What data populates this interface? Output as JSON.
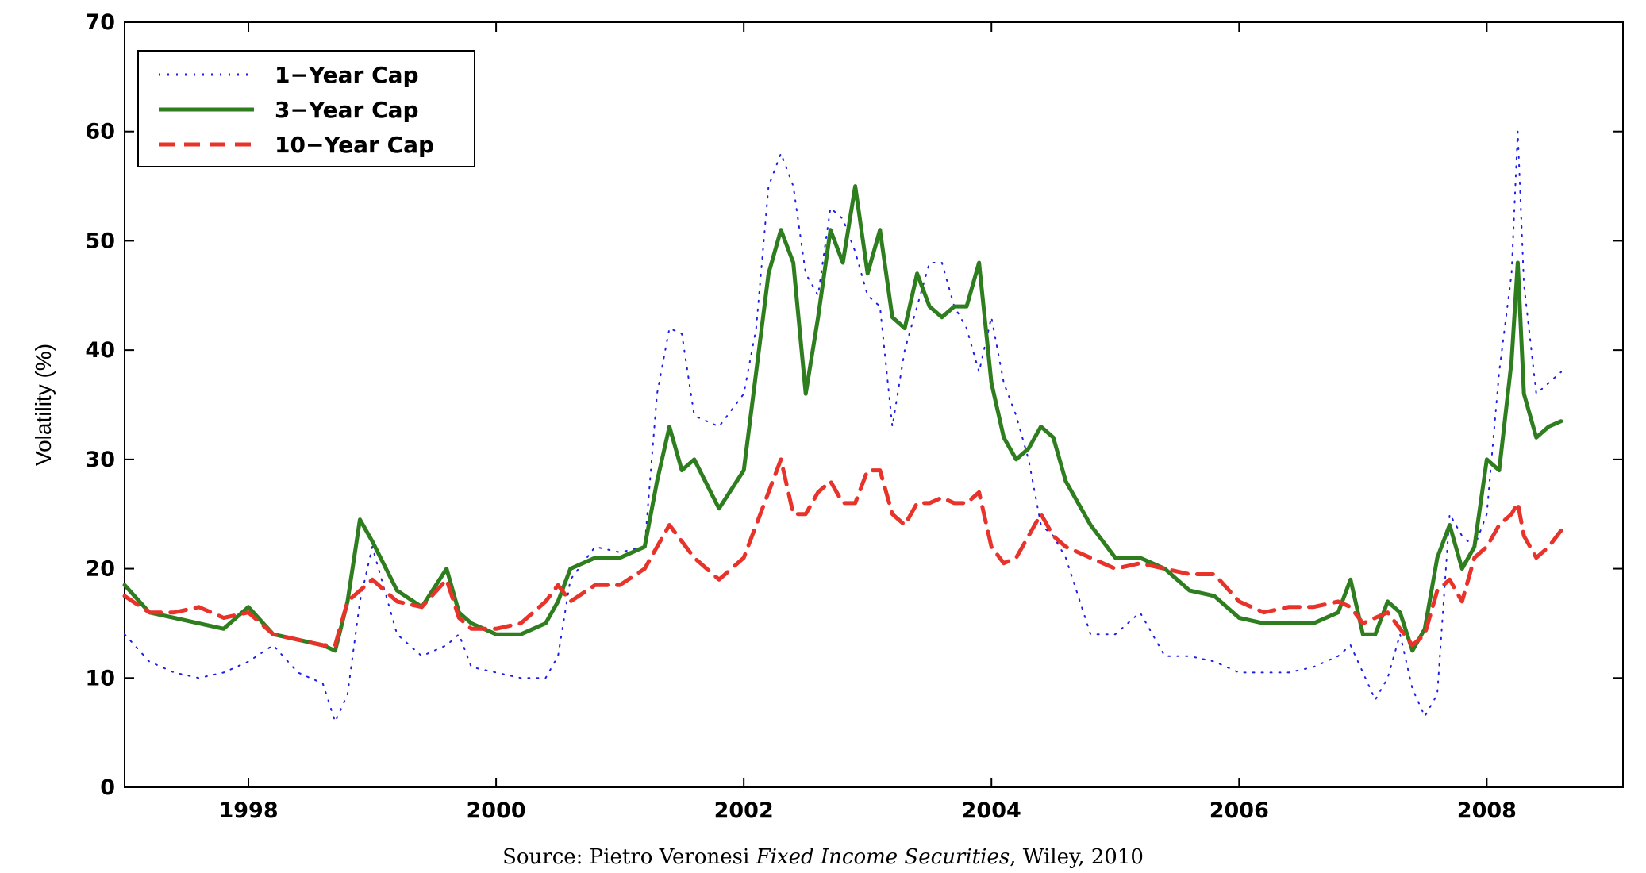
{
  "source": {
    "prefix": "Source: Pietro Veronesi ",
    "book": "Fixed Income Securities",
    "suffix": ", Wiley, 2010"
  },
  "chart_data": {
    "type": "line",
    "title": "",
    "xlabel": "",
    "ylabel": "Volatility (%)",
    "xlim": [
      1997.0,
      2009.1
    ],
    "ylim": [
      0,
      70
    ],
    "xticks": [
      1998,
      2000,
      2002,
      2004,
      2006,
      2008
    ],
    "yticks": [
      0,
      10,
      20,
      30,
      40,
      50,
      60,
      70
    ],
    "grid": false,
    "legend_position": "top-left",
    "x": [
      1997.0,
      1997.2,
      1997.4,
      1997.6,
      1997.8,
      1998.0,
      1998.2,
      1998.4,
      1998.6,
      1998.7,
      1998.8,
      1998.9,
      1999.0,
      1999.2,
      1999.4,
      1999.6,
      1999.7,
      1999.8,
      2000.0,
      2000.2,
      2000.4,
      2000.5,
      2000.6,
      2000.8,
      2001.0,
      2001.2,
      2001.3,
      2001.4,
      2001.5,
      2001.6,
      2001.8,
      2002.0,
      2002.1,
      2002.2,
      2002.3,
      2002.4,
      2002.5,
      2002.6,
      2002.7,
      2002.8,
      2002.9,
      2003.0,
      2003.1,
      2003.2,
      2003.3,
      2003.4,
      2003.5,
      2003.6,
      2003.7,
      2003.8,
      2003.9,
      2004.0,
      2004.1,
      2004.2,
      2004.3,
      2004.4,
      2004.5,
      2004.6,
      2004.8,
      2005.0,
      2005.2,
      2005.4,
      2005.6,
      2005.8,
      2006.0,
      2006.2,
      2006.4,
      2006.6,
      2006.8,
      2006.9,
      2007.0,
      2007.1,
      2007.2,
      2007.3,
      2007.4,
      2007.5,
      2007.6,
      2007.7,
      2007.8,
      2007.9,
      2008.0,
      2008.1,
      2008.2,
      2008.25,
      2008.3,
      2008.4,
      2008.5,
      2008.6
    ],
    "series": [
      {
        "name": "1−Year Cap",
        "color": "#1f1fe6",
        "style": "dotted",
        "values": [
          14.0,
          11.5,
          10.5,
          10.0,
          10.5,
          11.5,
          13.0,
          10.5,
          9.5,
          6.0,
          8.5,
          17.0,
          22.0,
          14.0,
          12.0,
          13.0,
          14.0,
          11.0,
          10.5,
          10.0,
          10.0,
          12.0,
          19.0,
          22.0,
          21.5,
          22.0,
          36.0,
          42.0,
          41.5,
          34.0,
          33.0,
          36.0,
          42.0,
          55.0,
          58.0,
          55.0,
          47.0,
          45.0,
          53.0,
          52.0,
          49.0,
          45.0,
          44.0,
          33.0,
          40.0,
          44.0,
          48.0,
          48.0,
          44.0,
          42.0,
          38.0,
          43.0,
          37.0,
          34.0,
          30.0,
          24.0,
          23.0,
          21.0,
          14.0,
          14.0,
          16.0,
          12.0,
          12.0,
          11.5,
          10.5,
          10.5,
          10.5,
          11.0,
          12.0,
          13.0,
          10.5,
          8.0,
          10.0,
          14.0,
          9.0,
          6.5,
          8.5,
          25.0,
          23.0,
          22.0,
          25.0,
          38.0,
          47.0,
          60.0,
          46.0,
          36.0,
          37.0,
          38.0
        ]
      },
      {
        "name": "3−Year Cap",
        "color": "#2e7d1e",
        "style": "solid",
        "values": [
          18.5,
          16.0,
          15.5,
          15.0,
          14.5,
          16.5,
          14.0,
          13.5,
          13.0,
          12.5,
          17.0,
          24.5,
          22.5,
          18.0,
          16.5,
          20.0,
          16.0,
          15.0,
          14.0,
          14.0,
          15.0,
          17.0,
          20.0,
          21.0,
          21.0,
          22.0,
          28.0,
          33.0,
          29.0,
          30.0,
          25.5,
          29.0,
          38.0,
          47.0,
          51.0,
          48.0,
          36.0,
          43.0,
          51.0,
          48.0,
          55.0,
          47.0,
          51.0,
          43.0,
          42.0,
          47.0,
          44.0,
          43.0,
          44.0,
          44.0,
          48.0,
          37.0,
          32.0,
          30.0,
          31.0,
          33.0,
          32.0,
          28.0,
          24.0,
          21.0,
          21.0,
          20.0,
          18.0,
          17.5,
          15.5,
          15.0,
          15.0,
          15.0,
          16.0,
          19.0,
          14.0,
          14.0,
          17.0,
          16.0,
          12.5,
          14.5,
          21.0,
          24.0,
          20.0,
          22.0,
          30.0,
          29.0,
          39.0,
          48.0,
          36.0,
          32.0,
          33.0,
          33.5
        ]
      },
      {
        "name": "10−Year Cap",
        "color": "#e8332a",
        "style": "dashed",
        "values": [
          17.5,
          16.0,
          16.0,
          16.5,
          15.5,
          16.0,
          14.0,
          13.5,
          13.0,
          13.0,
          17.0,
          18.0,
          19.0,
          17.0,
          16.5,
          19.0,
          15.5,
          14.5,
          14.5,
          15.0,
          17.0,
          18.5,
          17.0,
          18.5,
          18.5,
          20.0,
          22.0,
          24.0,
          22.5,
          21.0,
          19.0,
          21.0,
          24.0,
          27.0,
          30.0,
          25.0,
          25.0,
          27.0,
          28.0,
          26.0,
          26.0,
          29.0,
          29.0,
          25.0,
          24.0,
          26.0,
          26.0,
          26.5,
          26.0,
          26.0,
          27.0,
          22.0,
          20.5,
          21.0,
          23.0,
          25.0,
          23.0,
          22.0,
          21.0,
          20.0,
          20.5,
          20.0,
          19.5,
          19.5,
          17.0,
          16.0,
          16.5,
          16.5,
          17.0,
          16.5,
          15.0,
          15.5,
          16.0,
          14.5,
          13.0,
          14.0,
          18.0,
          19.0,
          17.0,
          21.0,
          22.0,
          24.0,
          25.0,
          26.0,
          23.0,
          21.0,
          22.0,
          23.5
        ]
      }
    ]
  }
}
